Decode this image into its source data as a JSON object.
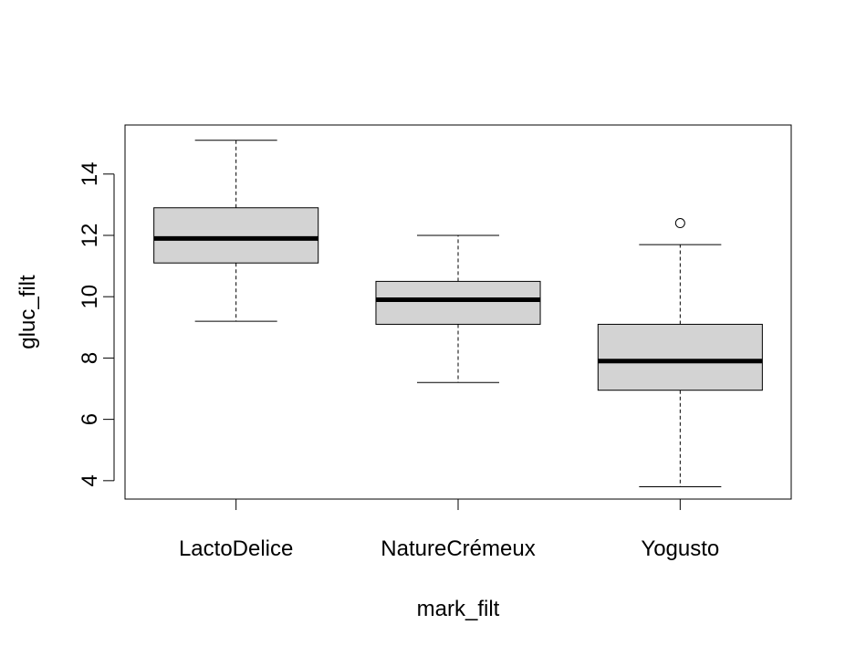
{
  "chart_data": {
    "type": "boxplot",
    "xlabel": "mark_filt",
    "ylabel": "gluc_filt",
    "ylim": [
      3.4,
      15.6
    ],
    "y_ticks": [
      4,
      6,
      8,
      10,
      12,
      14
    ],
    "y_tick_labels": [
      "4",
      "6",
      "8",
      "10",
      "12",
      "14"
    ],
    "grid": false,
    "categories": [
      "LactoDelice",
      "NatureCrémeux",
      "Yogusto"
    ],
    "boxes": [
      {
        "category": "LactoDelice",
        "whisker_low": 9.2,
        "q1": 11.1,
        "median": 11.9,
        "q3": 12.9,
        "whisker_high": 15.1,
        "outliers": []
      },
      {
        "category": "NatureCrémeux",
        "whisker_low": 7.2,
        "q1": 9.1,
        "median": 9.9,
        "q3": 10.5,
        "whisker_high": 12.0,
        "outliers": []
      },
      {
        "category": "Yogusto",
        "whisker_low": 3.8,
        "q1": 6.95,
        "median": 7.9,
        "q3": 9.1,
        "whisker_high": 11.7,
        "outliers": [
          12.4
        ]
      }
    ],
    "colors": {
      "box_fill": "#d3d3d3",
      "stroke": "#000000"
    }
  }
}
